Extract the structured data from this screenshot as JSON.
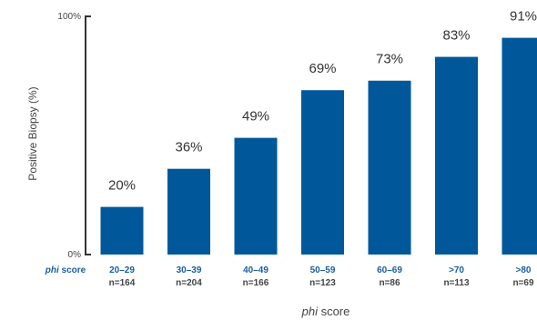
{
  "chart_data": {
    "type": "bar",
    "categories": [
      "20–29",
      "30–39",
      "40–49",
      "50–59",
      "60–69",
      ">70",
      ">80"
    ],
    "counts": [
      "n=164",
      "n=204",
      "n=166",
      "n=123",
      "n=86",
      "n=113",
      "n=69"
    ],
    "values": [
      20,
      36,
      49,
      69,
      73,
      83,
      91
    ],
    "value_labels": [
      "20%",
      "36%",
      "49%",
      "69%",
      "73%",
      "83%",
      "91%"
    ],
    "ylabel": "Positive Biopsy (%)",
    "ylim": [
      0,
      100
    ],
    "yticks": [
      "0%",
      "100%"
    ],
    "category_row_label_italic": "phi",
    "category_row_label_rest": " score",
    "xlabel_italic": "phi",
    "xlabel_rest": " score",
    "grid": false,
    "bar_color": "#00589a",
    "category_color": "#1a5fa0",
    "count_color": "#444444"
  }
}
